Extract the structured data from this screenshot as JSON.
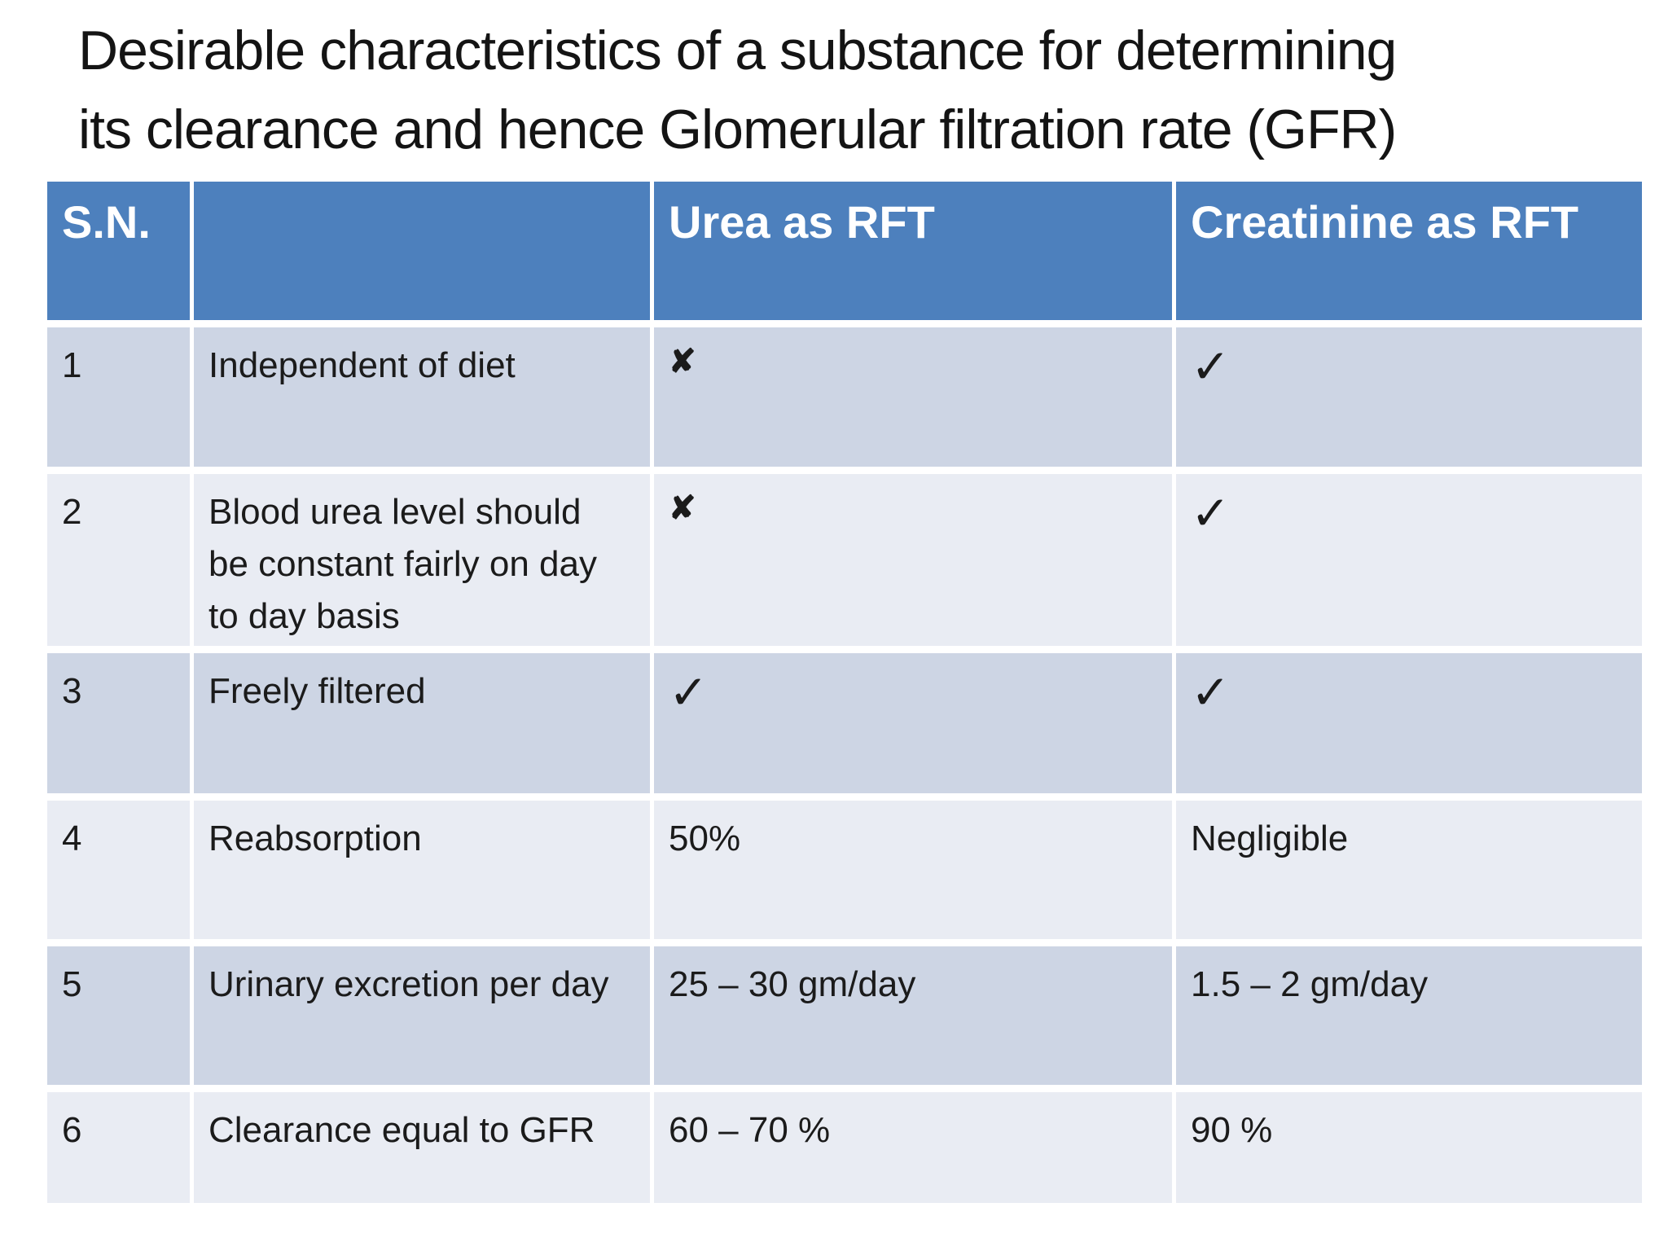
{
  "slide": {
    "title_line1": "Desirable characteristics of a substance for determining",
    "title_line2": "its clearance and hence Glomerular filtration rate (GFR)"
  },
  "table": {
    "headers": {
      "sn": "S.N.",
      "characteristic": "",
      "urea": "Urea as RFT",
      "creatinine": "Creatinine as RFT"
    },
    "rows": [
      {
        "sn": "1",
        "characteristic": "Independent of diet",
        "urea": "✘",
        "creatinine": "✓"
      },
      {
        "sn": "2",
        "characteristic": "Blood urea level should be constant fairly on day to day basis",
        "urea": "✘",
        "creatinine": "✓"
      },
      {
        "sn": "3",
        "characteristic": "Freely filtered",
        "urea": "✓",
        "creatinine": "✓"
      },
      {
        "sn": "4",
        "characteristic": "Reabsorption",
        "urea": "50%",
        "creatinine": "Negligible"
      },
      {
        "sn": "5",
        "characteristic": "Urinary excretion per day",
        "urea": "25 – 30 gm/day",
        "creatinine": "1.5 – 2 gm/day"
      },
      {
        "sn": "6",
        "characteristic": "Clearance equal to GFR",
        "urea": "60 – 70 %",
        "creatinine": "90 %"
      }
    ],
    "marks": {
      "check": "✓",
      "cross": "✘"
    },
    "colors": {
      "header_bg": "#4d80bd",
      "header_text": "#ffffff",
      "band_dark": "#cdd5e4",
      "band_light": "#e9ecf3",
      "body_text": "#1b1b1b"
    }
  }
}
